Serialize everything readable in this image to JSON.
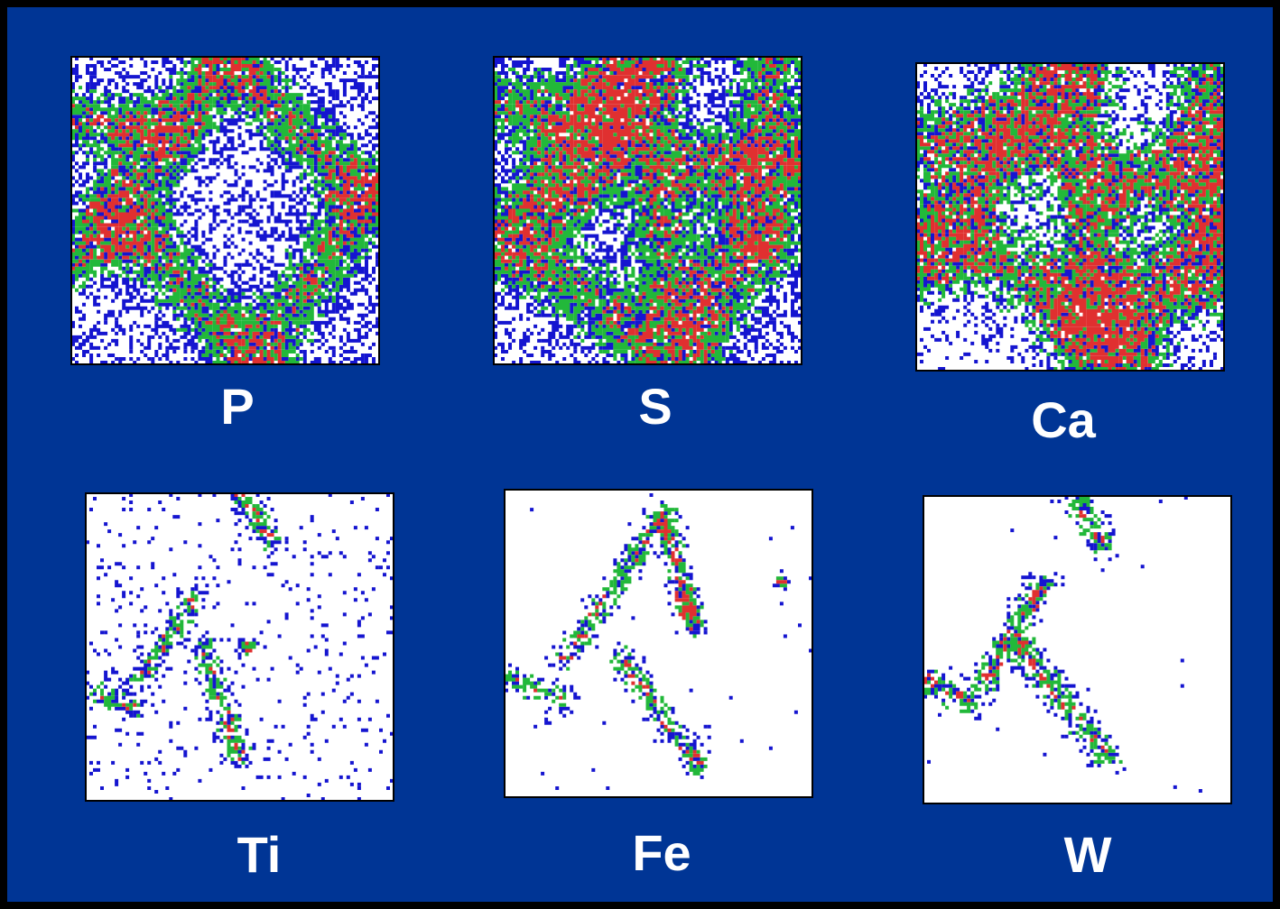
{
  "panels": [
    {
      "label": "P"
    },
    {
      "label": "S"
    },
    {
      "label": "Ca"
    },
    {
      "label": "Ti"
    },
    {
      "label": "Fe"
    },
    {
      "label": "W"
    }
  ]
}
